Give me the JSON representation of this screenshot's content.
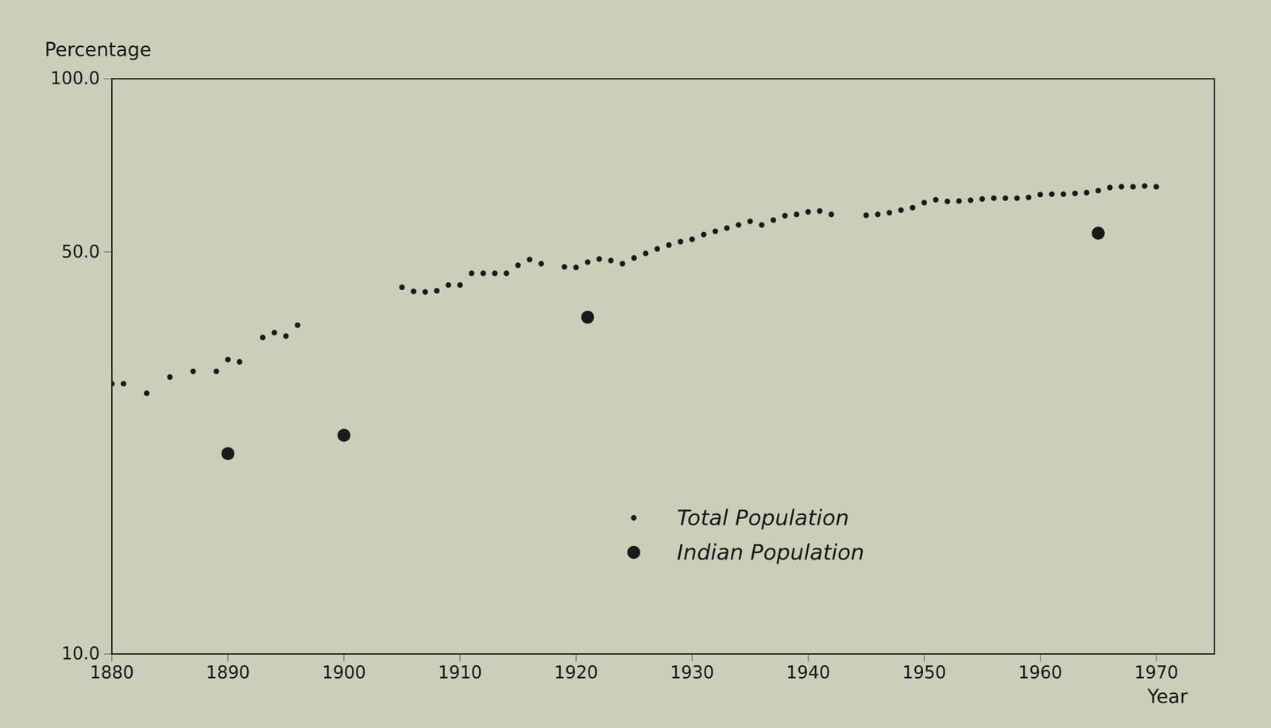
{
  "chart_data": {
    "type": "scatter",
    "x_label": "Year",
    "y_label": "Percentage",
    "log": "y",
    "xlim": [
      1880,
      1975
    ],
    "xticks": [
      1880,
      1890,
      1900,
      1910,
      1920,
      1930,
      1940,
      1950,
      1960,
      1970
    ],
    "ylim": [
      10,
      100
    ],
    "yticks": [
      {
        "value": 10,
        "label": "10.0"
      },
      {
        "value": 50,
        "label": "50.0"
      },
      {
        "value": 100,
        "label": "100.0"
      }
    ],
    "grid": false,
    "legend": "bottom",
    "series": [
      {
        "name": "Total Population",
        "color": "#1a1a1a",
        "marker": "small_dot",
        "x": [
          1880,
          1881,
          1883,
          1885,
          1887,
          1889,
          1890,
          1891,
          1893,
          1894,
          1895,
          1896,
          1905,
          1906,
          1907,
          1908,
          1909,
          1910,
          1911,
          1912,
          1913,
          1914,
          1915,
          1916,
          1917,
          1919,
          1920,
          1921,
          1922,
          1923,
          1924,
          1925,
          1926,
          1927,
          1928,
          1929,
          1930,
          1931,
          1932,
          1933,
          1934,
          1935,
          1936,
          1937,
          1938,
          1939,
          1940,
          1941,
          1942,
          1945,
          1946,
          1947,
          1948,
          1949,
          1950,
          1951,
          1952,
          1953,
          1954,
          1955,
          1956,
          1957,
          1958,
          1959,
          1960,
          1961,
          1962,
          1963,
          1964,
          1965,
          1966,
          1967,
          1968,
          1969,
          1970
        ],
        "values": [
          29.5,
          29.5,
          28.4,
          30.3,
          31.0,
          31.0,
          32.5,
          32.2,
          35.5,
          36.2,
          35.7,
          37.3,
          43.4,
          42.7,
          42.6,
          42.8,
          43.8,
          43.8,
          45.9,
          45.9,
          45.9,
          45.9,
          47.4,
          48.5,
          47.7,
          47.1,
          47.0,
          48.0,
          48.6,
          48.3,
          47.7,
          48.8,
          49.7,
          50.6,
          51.4,
          52.1,
          52.6,
          53.6,
          54.3,
          55.0,
          55.7,
          56.5,
          55.7,
          56.8,
          57.8,
          58.1,
          58.7,
          58.9,
          58.1,
          57.9,
          58.1,
          58.5,
          59.1,
          59.7,
          60.9,
          61.6,
          61.2,
          61.3,
          61.5,
          61.8,
          62.0,
          62.0,
          62.0,
          62.2,
          62.9,
          63.0,
          63.0,
          63.2,
          63.4,
          63.9,
          64.7,
          64.9,
          64.9,
          65.1,
          64.9
        ]
      },
      {
        "name": "Indian Population",
        "color": "#1a1a1a",
        "marker": "large_dot",
        "x": [
          1890,
          1900,
          1921,
          1965
        ],
        "values": [
          22.3,
          24.0,
          38.5,
          53.9
        ]
      }
    ]
  }
}
